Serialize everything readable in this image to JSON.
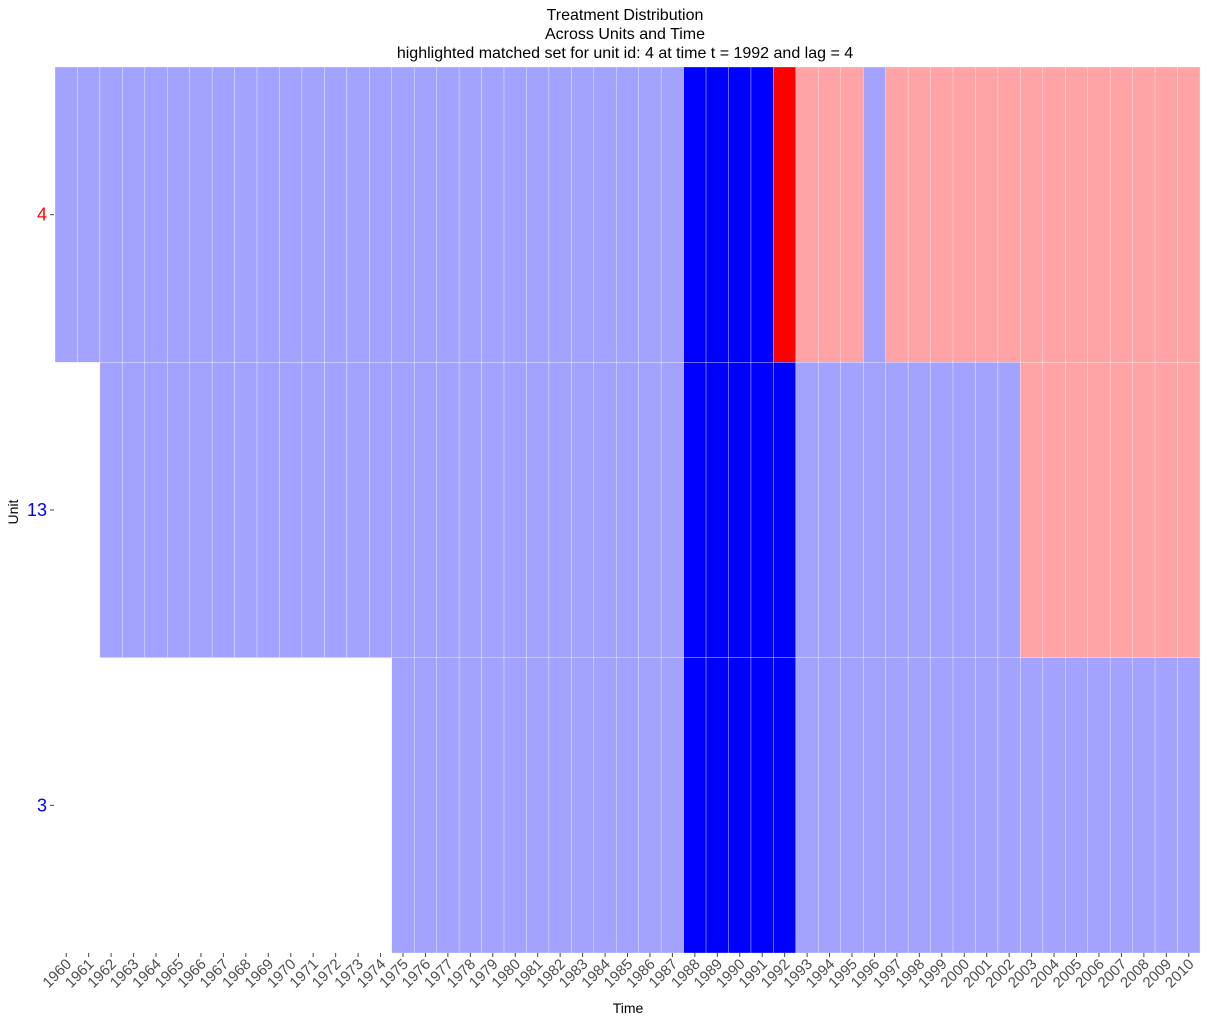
{
  "chart_data": {
    "type": "heatmap",
    "title": [
      "Treatment Distribution",
      "Across Units and Time",
      "highlighted matched set for unit id: 4 at time t = 1992 and lag = 4"
    ],
    "xlabel": "Time",
    "ylabel": "Unit",
    "x": [
      1960,
      1961,
      1962,
      1963,
      1964,
      1965,
      1966,
      1967,
      1968,
      1969,
      1970,
      1971,
      1972,
      1973,
      1974,
      1975,
      1976,
      1977,
      1978,
      1979,
      1980,
      1981,
      1982,
      1983,
      1984,
      1985,
      1986,
      1987,
      1988,
      1989,
      1990,
      1991,
      1992,
      1993,
      1994,
      1995,
      1996,
      1997,
      1998,
      1999,
      2000,
      2001,
      2002,
      2003,
      2004,
      2005,
      2006,
      2007,
      2008,
      2009,
      2010
    ],
    "units": [
      {
        "id": "4",
        "label_color": "#ff0000",
        "start": 1960,
        "end": 2010,
        "treated_years": [
          1993,
          1994,
          1995,
          1997,
          1998,
          1999,
          2000,
          2001,
          2002,
          2003,
          2004,
          2005,
          2006,
          2007,
          2008,
          2009,
          2010
        ]
      },
      {
        "id": "13",
        "label_color": "#0000ff",
        "start": 1962,
        "end": 2010,
        "treated_years": [
          2003,
          2004,
          2005,
          2006,
          2007,
          2008,
          2009,
          2010
        ]
      },
      {
        "id": "3",
        "label_color": "#0000ff",
        "start": 1975,
        "end": 2010,
        "treated_years": []
      }
    ],
    "highlight": {
      "unit": "4",
      "time": 1992,
      "lag": 4,
      "lag_years": [
        1988,
        1989,
        1990,
        1991
      ],
      "matched_units": [
        "13",
        "3"
      ]
    },
    "colors": {
      "control": "#a3a3ff",
      "treated": "#ffa3a6",
      "lag_window": "#0000ff",
      "treated_highlight": "#ff0000",
      "grid": "#ffffff",
      "background": "#ffffff"
    }
  }
}
